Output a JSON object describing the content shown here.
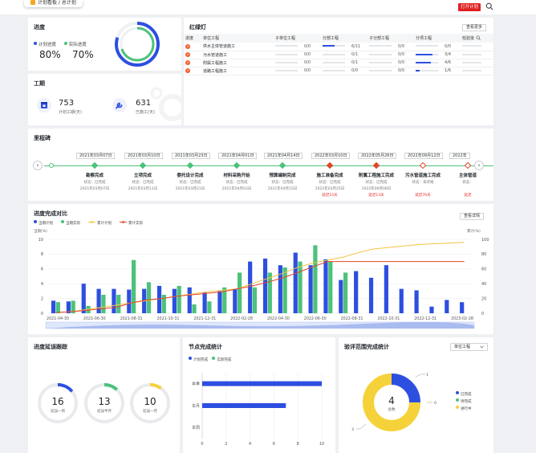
{
  "header": {
    "breadcrumb": "计划看板 / 总计划",
    "open_plan_label": "打开计划"
  },
  "progress": {
    "title": "进度",
    "plan_label": "计划进度",
    "actual_label": "实际进度",
    "plan_value": "80%",
    "actual_value": "70%",
    "plan_color": "#2d4fe0",
    "actual_color": "#4cc27a"
  },
  "duration": {
    "title": "工期",
    "plan_days": "753",
    "plan_days_label": "计划工期(天)",
    "used_days": "631",
    "used_days_label": "已施工(天)"
  },
  "redlight": {
    "title": "红绿灯",
    "more_label": "查看更多",
    "columns": [
      "进度",
      "单位工程",
      "子单位工程",
      "分部工程",
      "子分部工程",
      "分项工程",
      "检验批"
    ],
    "rows": [
      {
        "name": "供水主体管道施工",
        "c1": "0/0",
        "c2": "6/11",
        "c3": "0/0",
        "c4": "0/0",
        "p2": 0.55,
        "p4": 0
      },
      {
        "name": "污水管道施工",
        "c1": "0/0",
        "c2": "0/1",
        "c3": "0/0",
        "c4": "3/4",
        "p2": 0,
        "p4": 0.75
      },
      {
        "name": "附属工程施工",
        "c1": "0/0",
        "c2": "0/1",
        "c3": "0/0",
        "c4": "4/6",
        "p2": 0,
        "p4": 0.67
      },
      {
        "name": "道路工程施工",
        "c1": "0/0",
        "c2": "0/0",
        "c3": "0/0",
        "c4": "1/6",
        "p2": 0,
        "p4": 0.17
      }
    ]
  },
  "milestone": {
    "title": "里程碑",
    "items": [
      {
        "date": "2021年03月07日",
        "name": "勘察完成",
        "status": "状态：已完成",
        "actual": "2021年03月07日",
        "late": "",
        "color": "#4cc27a",
        "hollow": false
      },
      {
        "date": "2021年03月10日",
        "name": "立项完成",
        "status": "状态：已完成",
        "actual": "2021年03月11日",
        "late": "",
        "color": "#4cc27a",
        "hollow": false
      },
      {
        "date": "2021年03月23日",
        "name": "委托设计完成",
        "status": "状态：已完成",
        "actual": "2021年03月21日",
        "late": "",
        "color": "#4cc27a",
        "hollow": false
      },
      {
        "date": "2021年04月01日",
        "name": "材料采购开始",
        "status": "状态：已完成",
        "actual": "2021年04月03日",
        "late": "",
        "color": "#4cc27a",
        "hollow": false
      },
      {
        "date": "2021年04月14日",
        "name": "预算编制完成",
        "status": "状态：已完成",
        "actual": "2021年04月15日",
        "late": "",
        "color": "#4cc27a",
        "hollow": false
      },
      {
        "date": "2022年03月10日",
        "name": "施工准备完成",
        "status": "状态：已完成",
        "actual": "2022年03月25日",
        "late": "延迟15天",
        "color": "#e2452b",
        "hollow": false
      },
      {
        "date": "2022年05月26日",
        "name": "附属工程施工完成",
        "status": "状态：已完成",
        "actual": "2022年06月08日",
        "late": "延迟13天",
        "color": "#e2452b",
        "hollow": false
      },
      {
        "date": "2022年09月12日",
        "name": "污水管道施工完成",
        "status": "状态：未开始",
        "actual": "",
        "late": "延迟70天",
        "color": "#e2452b",
        "hollow": true
      },
      {
        "date": "2022年",
        "name": "主体管道",
        "status": "状态：",
        "actual": "",
        "late": "延迟",
        "color": "#e2452b",
        "hollow": true
      }
    ]
  },
  "compare": {
    "title": "进度完成对比",
    "detail_label": "查看详情",
    "left_axis_label": "当期(%)",
    "right_axis_label": "累计(%)"
  },
  "chart_data": [
    {
      "type": "bar",
      "title": "进度完成对比",
      "ylabel": "当期(%)",
      "y2label": "累计(%)",
      "ylim": [
        0,
        10
      ],
      "y2lim": [
        0,
        100
      ],
      "yticks": [
        0,
        2,
        4,
        6,
        8,
        10
      ],
      "y2ticks": [
        0,
        20,
        40,
        60,
        80,
        100
      ],
      "x_tick_labels": [
        "2021-04-30",
        "2021-06-30",
        "2021-08-31",
        "2021-10-31",
        "2021-12-31",
        "2022-02-28",
        "2022-04-30",
        "2022-06-30",
        "2022-08-31",
        "2022-10-31",
        "2022-12-31",
        "2023-02-28"
      ],
      "legend_position": "top-left",
      "series": [
        {
          "name": "当期计划",
          "kind": "bar",
          "axis": "left",
          "color": "#2d4fe0",
          "values": [
            1.7,
            1.6,
            4.0,
            3.3,
            3.3,
            3.2,
            3.3,
            3.7,
            3.3,
            3.5,
            2.8,
            3.0,
            3.3,
            7.0,
            7.4,
            6.5,
            8.2,
            6.5,
            7.3,
            4.5,
            5.7,
            4.8,
            6.5,
            3.3,
            3.1,
            0.9,
            1.8,
            1.5
          ]
        },
        {
          "name": "当期实际",
          "kind": "bar",
          "axis": "left",
          "color": "#4cc27a",
          "values": [
            1.5,
            1.7,
            1.0,
            2.5,
            2.5,
            7.2,
            4.2,
            2.5,
            3.7,
            1.2,
            1.6,
            3.5,
            5.5,
            3.5,
            5.5,
            6.2,
            7.0,
            9.2,
            7.0,
            5.5,
            null,
            null,
            null,
            null,
            null,
            null,
            null,
            null
          ]
        },
        {
          "name": "累计计划",
          "kind": "line",
          "axis": "right",
          "color": "#f5c342",
          "values": [
            1,
            2,
            5,
            8,
            11,
            14,
            17,
            20,
            23,
            26,
            29,
            31,
            33,
            40,
            47,
            54,
            62,
            68,
            72,
            76,
            82,
            87,
            89,
            91,
            93,
            94,
            95,
            96
          ]
        },
        {
          "name": "累计实际",
          "kind": "line",
          "axis": "right",
          "color": "#e2452b",
          "values": [
            1,
            2,
            4,
            6,
            8,
            14,
            18,
            20,
            23,
            25,
            27,
            29,
            33,
            37,
            42,
            48,
            55,
            63,
            70,
            70,
            70,
            70,
            70,
            70,
            70,
            70,
            70,
            70
          ]
        }
      ]
    },
    {
      "type": "pie",
      "title": "进度延误跟踪",
      "slices": [
        {
          "label": "延误一周",
          "value": 16
        },
        {
          "label": "延误半月",
          "value": 13
        },
        {
          "label": "延误一月",
          "value": 10
        }
      ]
    },
    {
      "type": "bar",
      "orientation": "horizontal",
      "title": "节点完成统计",
      "categories": [
        "本季",
        "本月",
        "本周"
      ],
      "xlim": [
        0,
        10
      ],
      "xticks": [
        0,
        2,
        4,
        6,
        8,
        10
      ],
      "series": [
        {
          "name": "计划完成",
          "color": "#2d4fe0",
          "values": [
            10,
            7,
            0
          ]
        },
        {
          "name": "实际完成",
          "color": "#4cc27a",
          "values": [
            0,
            0,
            0
          ]
        }
      ]
    },
    {
      "type": "pie",
      "title": "验评范围完成统计",
      "center_value": "4",
      "center_label": "总数",
      "slices": [
        {
          "label": "已完成",
          "value": 1,
          "color": "#2d4fe0"
        },
        {
          "label": "待完成",
          "value": 0,
          "color": "#4cc27a"
        },
        {
          "label": "进行中",
          "value": 3,
          "color": "#f5d23a"
        }
      ]
    }
  ],
  "delay": {
    "title": "进度延误跟踪",
    "rings": [
      {
        "value": "16",
        "label": "延误一周",
        "color": "#2d4fe0",
        "frac": 0.14
      },
      {
        "value": "13",
        "label": "延误半月",
        "color": "#4cc27a",
        "frac": 0.12
      },
      {
        "value": "10",
        "label": "延误一月",
        "color": "#f5d23a",
        "frac": 0.1
      }
    ]
  },
  "node": {
    "title": "节点完成统计",
    "legend_plan": "计划完成",
    "legend_actual": "实际完成"
  },
  "acceptance": {
    "title": "验评范围完成统计",
    "filter_label": "单位工程",
    "total": "4",
    "total_label": "总数",
    "label_done": "1",
    "label_pending": "0",
    "label_inprogress": "3"
  }
}
